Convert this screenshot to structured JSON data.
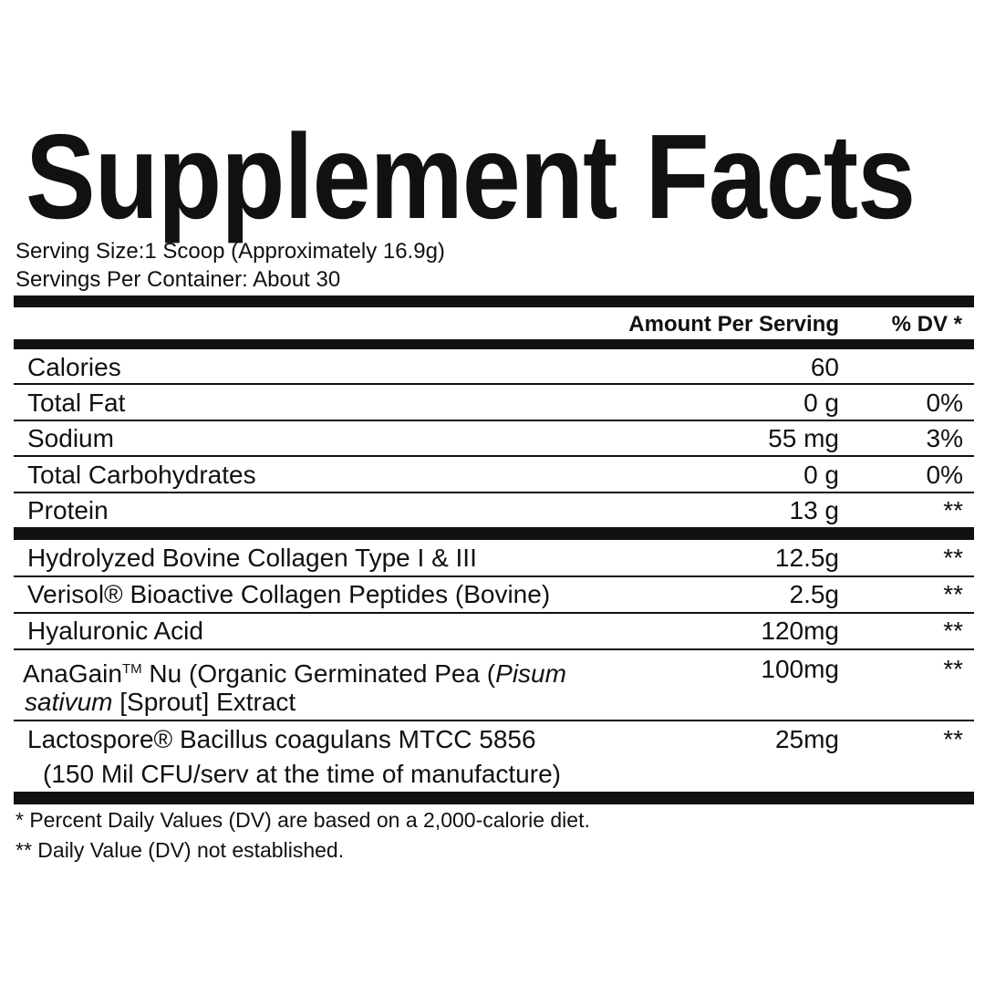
{
  "title": "Supplement Facts",
  "serving_size": "Serving Size:1 Scoop (Approximately 16.9g)",
  "servings_per_container": "Servings Per Container:  About 30",
  "header": {
    "amount": "Amount Per Serving",
    "dv": "% DV *"
  },
  "nutrients": [
    {
      "name": "Calories",
      "amount": "60",
      "dv": ""
    },
    {
      "name": "Total Fat",
      "amount": "0 g",
      "dv": "0%"
    },
    {
      "name": "Sodium",
      "amount": "55 mg",
      "dv": "3%"
    },
    {
      "name": "Total Carbohydrates",
      "amount": "0 g",
      "dv": "0%"
    },
    {
      "name": "Protein",
      "amount": "13 g",
      "dv": "**"
    }
  ],
  "ingredients": [
    {
      "name": "Hydrolyzed Bovine Collagen Type I & III",
      "amount": "12.5g",
      "dv": "**"
    },
    {
      "name": "Verisol® Bioactive Collagen Peptides (Bovine)",
      "amount": "2.5g",
      "dv": "**"
    },
    {
      "name": "Hyaluronic Acid",
      "amount": "120mg",
      "dv": "**"
    },
    {
      "name_a": "AnaGain",
      "name_tm": "TM",
      "name_b": " Nu (Organic Germinated Pea (",
      "name_i1": "Pisum",
      "name_i2": "sativum",
      "name_c": " [Sprout] Extract",
      "amount": "100mg",
      "dv": "**"
    },
    {
      "name_line1": "Lactospore® Bacillus coagulans MTCC 5856",
      "name_line2": "(150 Mil CFU/serv at the time of manufacture)",
      "amount": "25mg",
      "dv": "**"
    }
  ],
  "footnotes": [
    "*  Percent Daily Values (DV) are based on a 2,000-calorie diet.",
    "** Daily Value (DV) not established."
  ]
}
